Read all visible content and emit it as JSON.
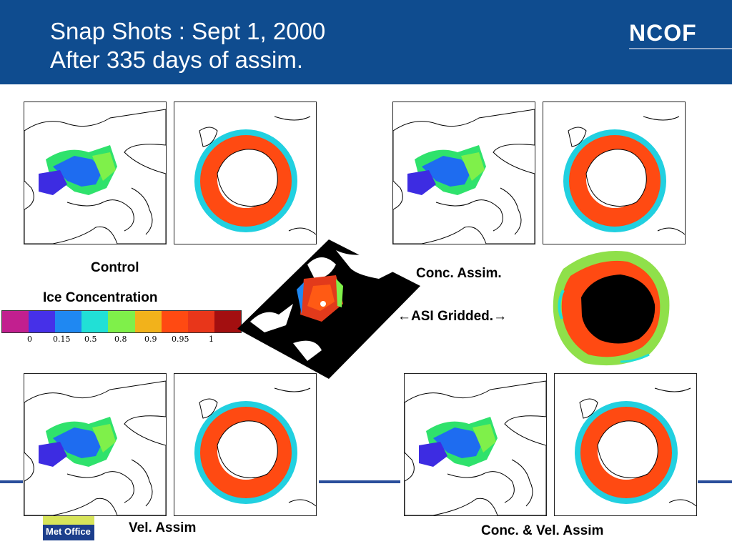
{
  "header": {
    "title_line1": "Snap Shots : Sept 1, 2000",
    "title_line2": "After 335 days of assim.",
    "logo": "NCOF",
    "bg_color": "#0f4c8f"
  },
  "labels": {
    "control": "Control",
    "ice_concentration": "Ice Concentration",
    "conc_assim": "Conc. Assim.",
    "asi_gridded": "←ASI Gridded.→",
    "vel_assim": "Vel. Assim",
    "conc_vel_assim": "Conc. & Vel. Assim"
  },
  "colorbar": {
    "colors": [
      "#c21f8f",
      "#4630e8",
      "#1f88f2",
      "#21e0d6",
      "#7ff04a",
      "#f2b21b",
      "#ff4a12",
      "#e8361a",
      "#a30f10"
    ],
    "tick_labels": [
      "0",
      "0.15",
      "0.5",
      "0.8",
      "0.9",
      "0.95",
      "1"
    ]
  },
  "footer": {
    "met_office": "Met Office"
  }
}
